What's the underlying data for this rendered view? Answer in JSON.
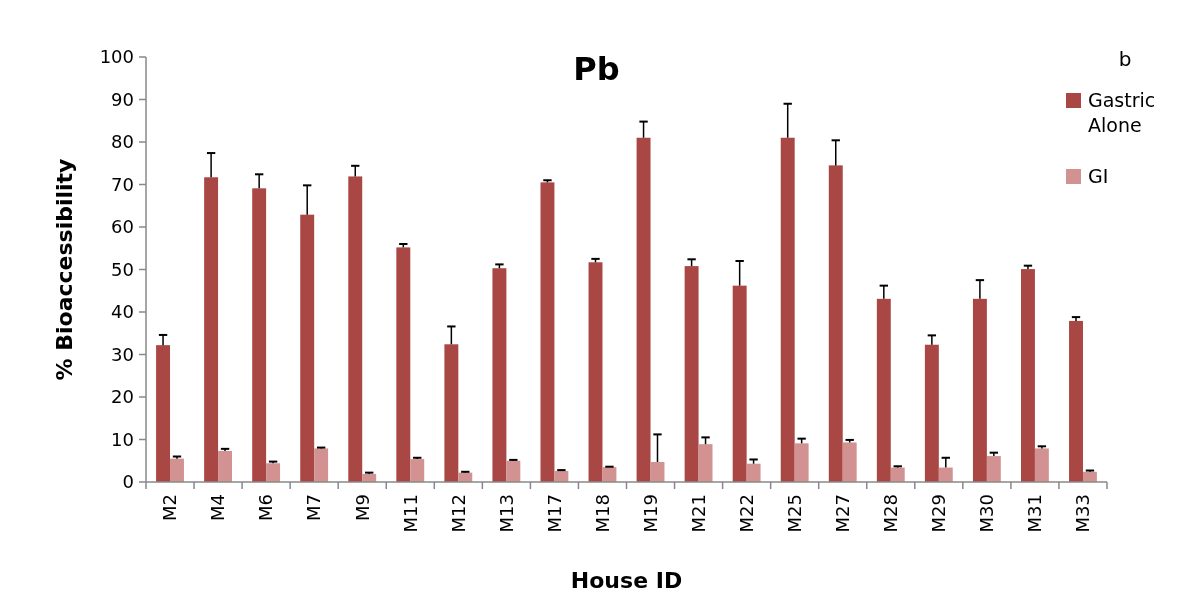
{
  "chart_data": {
    "type": "bar",
    "title": "Pb",
    "xlabel": "House ID",
    "ylabel": "% Bioaccessibility",
    "annotations": [
      "b"
    ],
    "categories": [
      "M2",
      "M4",
      "M6",
      "M7",
      "M9",
      "M11",
      "M12",
      "M13",
      "M17",
      "M18",
      "M19",
      "M21",
      "M22",
      "M25",
      "M27",
      "M28",
      "M29",
      "M30",
      "M31",
      "M33"
    ],
    "series": [
      {
        "name": "Gastric Alone",
        "color": "#a94744",
        "values": [
          32.2,
          71.7,
          69.1,
          62.9,
          71.9,
          55.2,
          32.4,
          50.3,
          70.5,
          51.7,
          81,
          50.8,
          46.2,
          81,
          74.5,
          43.1,
          32.3,
          43.1,
          50.1,
          37.9
        ],
        "errors": [
          [
            32.2,
            34.6
          ],
          [
            71.7,
            77.4
          ],
          [
            69.1,
            72.4
          ],
          [
            62.9,
            69.8
          ],
          [
            71.9,
            74.4
          ],
          [
            55.2,
            56
          ],
          [
            32.4,
            36.6
          ],
          [
            50.3,
            51.2
          ],
          [
            70.5,
            71
          ],
          [
            51.7,
            52.5
          ],
          [
            81,
            84.8
          ],
          [
            50.8,
            52.4
          ],
          [
            46.2,
            52
          ],
          [
            81,
            89
          ],
          [
            74.5,
            80.4
          ],
          [
            43.1,
            46.2
          ],
          [
            32.3,
            34.5
          ],
          [
            43.1,
            47.5
          ],
          [
            50.1,
            50.9
          ],
          [
            37.9,
            38.8
          ]
        ]
      },
      {
        "name": "GI",
        "color": "#d39292",
        "values": [
          5.5,
          7.3,
          4.4,
          7.9,
          1.9,
          5.4,
          2.2,
          5,
          2.6,
          3.5,
          4.7,
          8.9,
          4.3,
          9.1,
          9.3,
          3.4,
          3.4,
          6.1,
          7.9,
          2.4
        ],
        "errors": [
          [
            5.5,
            6
          ],
          [
            7.3,
            7.8
          ],
          [
            4.4,
            4.8
          ],
          [
            7.9,
            8.1
          ],
          [
            1.9,
            2.2
          ],
          [
            5.4,
            5.7
          ],
          [
            2.2,
            2.4
          ],
          [
            5,
            5.2
          ],
          [
            2.6,
            2.8
          ],
          [
            3.5,
            3.6
          ],
          [
            4.7,
            11.2
          ],
          [
            8.9,
            10.5
          ],
          [
            4.3,
            5.3
          ],
          [
            9.1,
            10.2
          ],
          [
            9.3,
            9.9
          ],
          [
            3.4,
            3.7
          ],
          [
            3.4,
            5.7
          ],
          [
            6.1,
            6.9
          ],
          [
            7.9,
            8.4
          ],
          [
            2.4,
            2.7
          ]
        ]
      }
    ],
    "ylim": [
      0,
      100
    ],
    "yticks": [
      0,
      10,
      20,
      30,
      40,
      50,
      60,
      70,
      80,
      90,
      100
    ],
    "grid": false,
    "legend": "top right"
  }
}
